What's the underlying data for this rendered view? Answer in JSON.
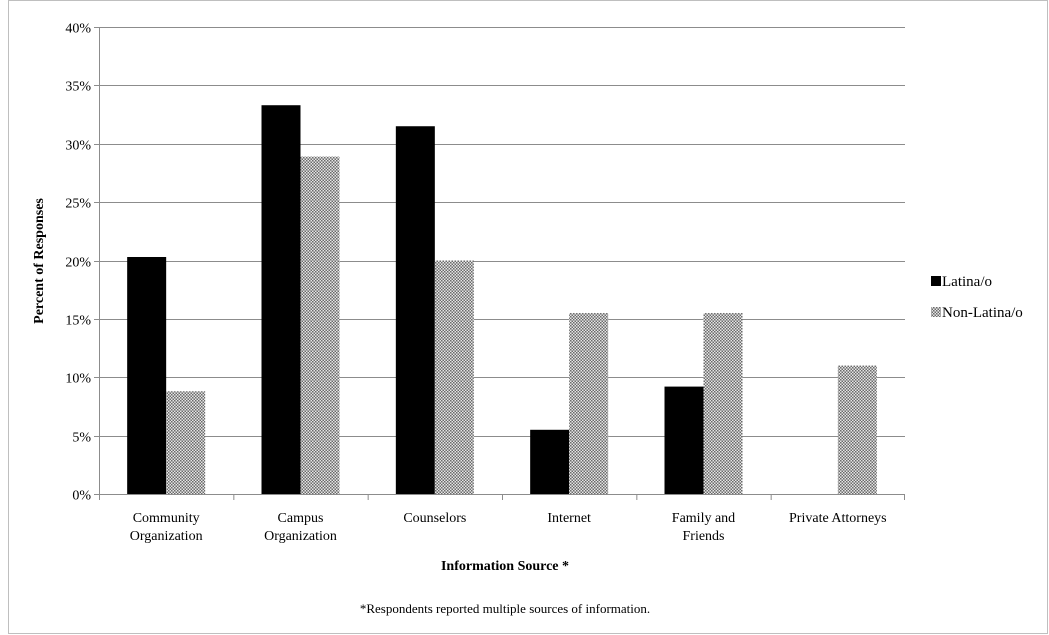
{
  "chart_data": {
    "type": "bar",
    "categories": [
      [
        "Community",
        "Organization"
      ],
      [
        "Campus",
        "Organization"
      ],
      [
        "Counselors"
      ],
      [
        "Internet"
      ],
      [
        "Family and",
        "Friends"
      ],
      [
        "Private Attorneys"
      ]
    ],
    "series": [
      {
        "name": "Latina/o",
        "color": "#000000",
        "pattern": "solid",
        "values": [
          20.3,
          33.3,
          31.5,
          5.5,
          9.2,
          0
        ]
      },
      {
        "name": "Non-Latina/o",
        "color": "#808080",
        "pattern": "checkered",
        "values": [
          8.8,
          28.9,
          20.0,
          15.5,
          15.5,
          11.0
        ]
      }
    ],
    "ylim": [
      0,
      40
    ],
    "y_ticks": [
      "0%",
      "5%",
      "10%",
      "15%",
      "20%",
      "25%",
      "30%",
      "35%",
      "40%"
    ],
    "xlabel": "Information Source *",
    "ylabel": "Percent of Responses",
    "footnote": "*Respondents reported multiple sources of information.",
    "grid": true,
    "legend_position": "right"
  }
}
